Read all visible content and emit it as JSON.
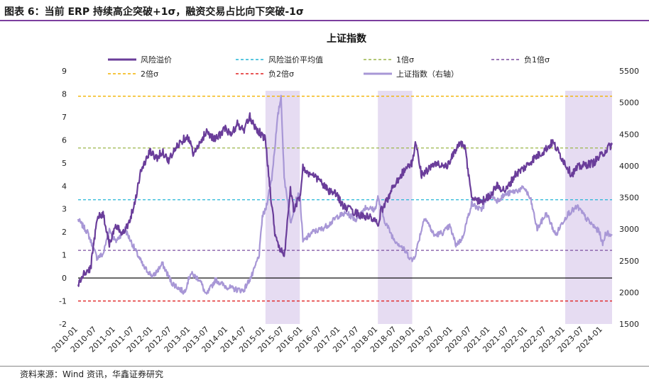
{
  "header": {
    "caption": "图表 6：当前 ERP 持续高企突破+1σ，融资交易占比向下突破-1σ"
  },
  "footer": {
    "source": "资料来源：Wind 资讯，华鑫证券研究"
  },
  "chart_data": {
    "type": "line",
    "title": "上证指数",
    "y_left": {
      "min": -2,
      "max": 9,
      "ticks": [
        -2,
        -1,
        0,
        1,
        2,
        3,
        4,
        5,
        6,
        7,
        8,
        9
      ]
    },
    "y_right": {
      "min": 1500,
      "max": 5500,
      "ticks": [
        1500,
        2000,
        2500,
        3000,
        3500,
        4000,
        4500,
        5000,
        5500
      ]
    },
    "x_ticks": [
      "2010-01",
      "2010-07",
      "2011-01",
      "2011-07",
      "2012-01",
      "2012-07",
      "2013-01",
      "2013-07",
      "2014-01",
      "2014-07",
      "2015-01",
      "2015-07",
      "2016-01",
      "2016-07",
      "2017-01",
      "2017-07",
      "2018-01",
      "2018-07",
      "2019-01",
      "2019-07",
      "2020-01",
      "2020-07",
      "2021-01",
      "2021-07",
      "2022-01",
      "2022-07",
      "2023-01",
      "2023-07",
      "2024-01"
    ],
    "x_range": [
      "2010-01",
      "2024-04"
    ],
    "grid": false,
    "legend": [
      {
        "label": "风险溢价",
        "style": "solid",
        "color": "#6a3d9a"
      },
      {
        "label": "风险溢价平均值",
        "style": "dashed",
        "color": "#22b5d6"
      },
      {
        "label": "1倍σ",
        "style": "dashed",
        "color": "#9ab54a"
      },
      {
        "label": "负1倍σ",
        "style": "dashed",
        "color": "#7b4fa0"
      },
      {
        "label": "2倍σ",
        "style": "dashed",
        "color": "#f2b400"
      },
      {
        "label": "负2倍σ",
        "style": "dashed",
        "color": "#e02020"
      },
      {
        "label": "上证指数（右轴）",
        "style": "solid",
        "color": "#a897d6"
      }
    ],
    "reference_lines": [
      {
        "name": "风险溢价平均值",
        "value": 3.4,
        "color": "#22b5d6"
      },
      {
        "name": "1倍σ",
        "value": 5.65,
        "color": "#9ab54a"
      },
      {
        "name": "负1倍σ",
        "value": 1.2,
        "color": "#7b4fa0"
      },
      {
        "name": "2倍σ",
        "value": 7.9,
        "color": "#f2b400"
      },
      {
        "name": "负2倍σ",
        "value": -1.0,
        "color": "#e02020"
      }
    ],
    "highlight_periods": [
      {
        "start": "2015-01",
        "end": "2015-12"
      },
      {
        "start": "2018-01",
        "end": "2018-12"
      },
      {
        "start": "2023-01",
        "end": "2024-04"
      }
    ],
    "series": [
      {
        "name": "风险溢价",
        "axis": "left",
        "color": "#6a3d9a",
        "points": [
          [
            "2010-01",
            -0.3
          ],
          [
            "2010-03",
            0.2
          ],
          [
            "2010-05",
            0.4
          ],
          [
            "2010-06",
            1.5
          ],
          [
            "2010-07",
            2.6
          ],
          [
            "2010-09",
            2.8
          ],
          [
            "2010-11",
            1.5
          ],
          [
            "2011-01",
            2.2
          ],
          [
            "2011-03",
            2.0
          ],
          [
            "2011-05",
            2.3
          ],
          [
            "2011-07",
            3.2
          ],
          [
            "2011-09",
            4.6
          ],
          [
            "2011-12",
            5.5
          ],
          [
            "2012-02",
            5.2
          ],
          [
            "2012-04",
            5.5
          ],
          [
            "2012-06",
            5.1
          ],
          [
            "2012-09",
            5.8
          ],
          [
            "2012-12",
            6.2
          ],
          [
            "2013-02",
            5.4
          ],
          [
            "2013-04",
            5.8
          ],
          [
            "2013-06",
            6.4
          ],
          [
            "2013-09",
            6.0
          ],
          [
            "2013-12",
            6.5
          ],
          [
            "2014-02",
            6.2
          ],
          [
            "2014-04",
            6.7
          ],
          [
            "2014-06",
            6.4
          ],
          [
            "2014-08",
            7.0
          ],
          [
            "2014-10",
            6.5
          ],
          [
            "2014-12",
            6.2
          ],
          [
            "2015-01",
            6.0
          ],
          [
            "2015-02",
            4.5
          ],
          [
            "2015-03",
            3.2
          ],
          [
            "2015-04",
            2.0
          ],
          [
            "2015-05",
            1.5
          ],
          [
            "2015-06",
            1.2
          ],
          [
            "2015-07",
            0.8
          ],
          [
            "2015-08",
            2.5
          ],
          [
            "2015-09",
            3.8
          ],
          [
            "2015-10",
            3.0
          ],
          [
            "2015-12",
            3.5
          ],
          [
            "2016-01",
            4.8
          ],
          [
            "2016-03",
            4.5
          ],
          [
            "2016-06",
            4.3
          ],
          [
            "2016-09",
            3.8
          ],
          [
            "2016-12",
            3.6
          ],
          [
            "2017-02",
            3.1
          ],
          [
            "2017-05",
            2.9
          ],
          [
            "2017-08",
            2.7
          ],
          [
            "2017-11",
            2.6
          ],
          [
            "2018-01",
            2.3
          ],
          [
            "2018-02",
            2.9
          ],
          [
            "2018-04",
            3.4
          ],
          [
            "2018-06",
            4.0
          ],
          [
            "2018-09",
            4.6
          ],
          [
            "2018-12",
            5.0
          ],
          [
            "2019-01",
            5.9
          ],
          [
            "2019-03",
            4.5
          ],
          [
            "2019-05",
            4.7
          ],
          [
            "2019-08",
            5.0
          ],
          [
            "2019-11",
            4.8
          ],
          [
            "2020-01",
            5.3
          ],
          [
            "2020-03",
            5.9
          ],
          [
            "2020-05",
            5.6
          ],
          [
            "2020-07",
            3.5
          ],
          [
            "2020-10",
            3.3
          ],
          [
            "2021-01",
            3.6
          ],
          [
            "2021-03",
            4.0
          ],
          [
            "2021-06",
            3.8
          ],
          [
            "2021-09",
            4.5
          ],
          [
            "2021-12",
            4.8
          ],
          [
            "2022-03",
            5.2
          ],
          [
            "2022-06",
            5.5
          ],
          [
            "2022-09",
            5.9
          ],
          [
            "2022-12",
            5.2
          ],
          [
            "2023-03",
            4.5
          ],
          [
            "2023-05",
            4.8
          ],
          [
            "2023-07",
            4.9
          ],
          [
            "2023-10",
            5.0
          ],
          [
            "2024-01",
            5.4
          ],
          [
            "2024-03",
            5.7
          ],
          [
            "2024-04",
            5.8
          ]
        ]
      },
      {
        "name": "上证指数（右轴）",
        "axis": "right",
        "color": "#a897d6",
        "points": [
          [
            "2010-01",
            3150
          ],
          [
            "2010-04",
            2950
          ],
          [
            "2010-07",
            2550
          ],
          [
            "2010-09",
            2600
          ],
          [
            "2010-11",
            3000
          ],
          [
            "2011-01",
            2800
          ],
          [
            "2011-04",
            3000
          ],
          [
            "2011-07",
            2700
          ],
          [
            "2011-10",
            2400
          ],
          [
            "2012-01",
            2250
          ],
          [
            "2012-04",
            2450
          ],
          [
            "2012-07",
            2150
          ],
          [
            "2012-11",
            2000
          ],
          [
            "2013-01",
            2300
          ],
          [
            "2013-04",
            2200
          ],
          [
            "2013-06",
            1950
          ],
          [
            "2013-09",
            2200
          ],
          [
            "2013-12",
            2100
          ],
          [
            "2014-03",
            2050
          ],
          [
            "2014-06",
            2030
          ],
          [
            "2014-09",
            2300
          ],
          [
            "2014-11",
            2600
          ],
          [
            "2014-12",
            3200
          ],
          [
            "2015-01",
            3300
          ],
          [
            "2015-03",
            3800
          ],
          [
            "2015-05",
            4800
          ],
          [
            "2015-06",
            5100
          ],
          [
            "2015-07",
            3800
          ],
          [
            "2015-08",
            3500
          ],
          [
            "2015-09",
            3100
          ],
          [
            "2015-11",
            3500
          ],
          [
            "2015-12",
            3550
          ],
          [
            "2016-01",
            2800
          ],
          [
            "2016-04",
            2950
          ],
          [
            "2016-07",
            3000
          ],
          [
            "2016-10",
            3100
          ],
          [
            "2016-12",
            3200
          ],
          [
            "2017-03",
            3250
          ],
          [
            "2017-06",
            3150
          ],
          [
            "2017-09",
            3350
          ],
          [
            "2017-12",
            3300
          ],
          [
            "2018-01",
            3500
          ],
          [
            "2018-03",
            3150
          ],
          [
            "2018-06",
            2850
          ],
          [
            "2018-09",
            2700
          ],
          [
            "2018-12",
            2500
          ],
          [
            "2019-01",
            2600
          ],
          [
            "2019-04",
            3200
          ],
          [
            "2019-07",
            2900
          ],
          [
            "2019-10",
            2950
          ],
          [
            "2019-12",
            3050
          ],
          [
            "2020-02",
            2750
          ],
          [
            "2020-04",
            2850
          ],
          [
            "2020-07",
            3400
          ],
          [
            "2020-10",
            3300
          ],
          [
            "2021-01",
            3550
          ],
          [
            "2021-03",
            3450
          ],
          [
            "2021-06",
            3550
          ],
          [
            "2021-09",
            3600
          ],
          [
            "2021-12",
            3650
          ],
          [
            "2022-02",
            3450
          ],
          [
            "2022-04",
            3000
          ],
          [
            "2022-07",
            3250
          ],
          [
            "2022-10",
            2900
          ],
          [
            "2022-12",
            3100
          ],
          [
            "2023-02",
            3250
          ],
          [
            "2023-05",
            3350
          ],
          [
            "2023-08",
            3150
          ],
          [
            "2023-10",
            3050
          ],
          [
            "2023-12",
            2950
          ],
          [
            "2024-01",
            2750
          ],
          [
            "2024-02",
            2950
          ],
          [
            "2024-04",
            2900
          ]
        ]
      }
    ]
  }
}
